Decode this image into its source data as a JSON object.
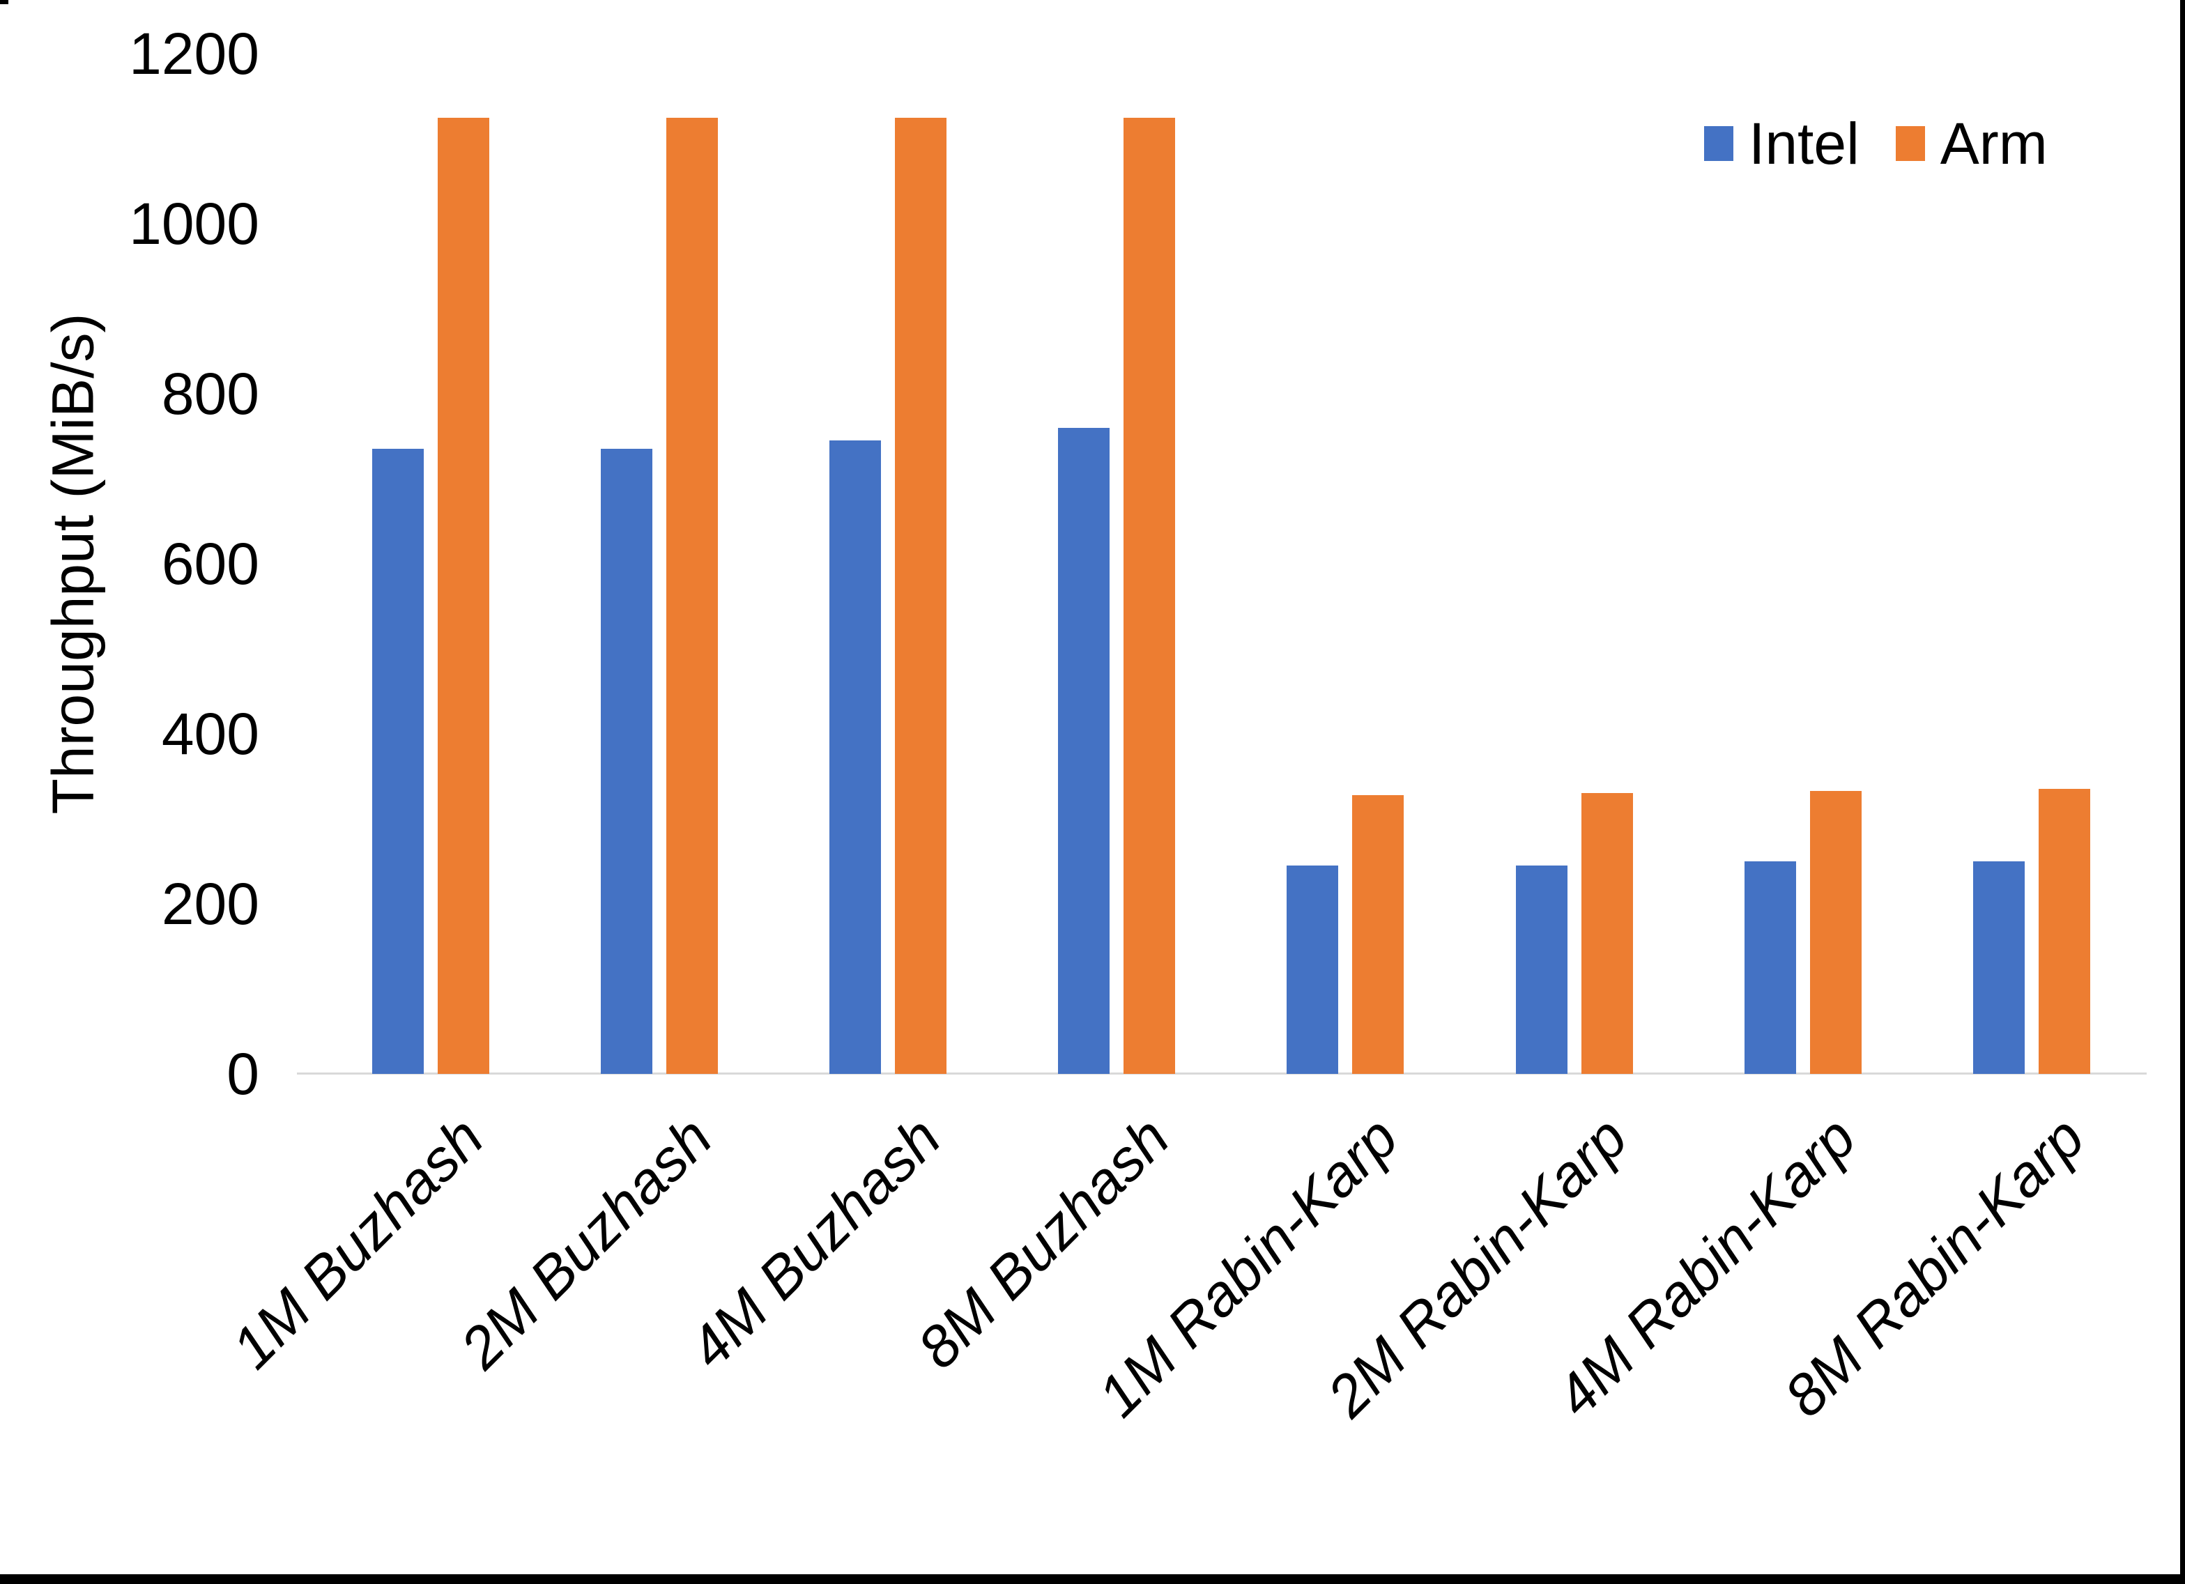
{
  "page": {
    "background": "#FFFFFF",
    "frame_color": "#000000"
  },
  "chart_data": {
    "type": "bar",
    "title": "",
    "ylabel": "Throughput (MiB/s)",
    "xlabel": "",
    "categories": [
      "1M Buzhash",
      "2M Buzhash",
      "4M Buzhash",
      "8M Buzhash",
      "1M Rabin-Karp",
      "2M Rabin-Karp",
      "4M Rabin-Karp",
      "8M Rabin-Karp"
    ],
    "series": [
      {
        "name": "Intel",
        "color": "#4472C4",
        "values": [
          735,
          735,
          745,
          760,
          245,
          245,
          250,
          250
        ]
      },
      {
        "name": "Arm",
        "color": "#ED7D31",
        "values": [
          1125,
          1125,
          1125,
          1125,
          328,
          330,
          333,
          335
        ]
      }
    ],
    "ylim": [
      0,
      1200
    ],
    "yticks": [
      0,
      200,
      400,
      600,
      800,
      1000,
      1200
    ],
    "grid": false,
    "legend_position": "top-right",
    "axis_line_color": "#D9D9D9",
    "text_color": "#000000"
  }
}
